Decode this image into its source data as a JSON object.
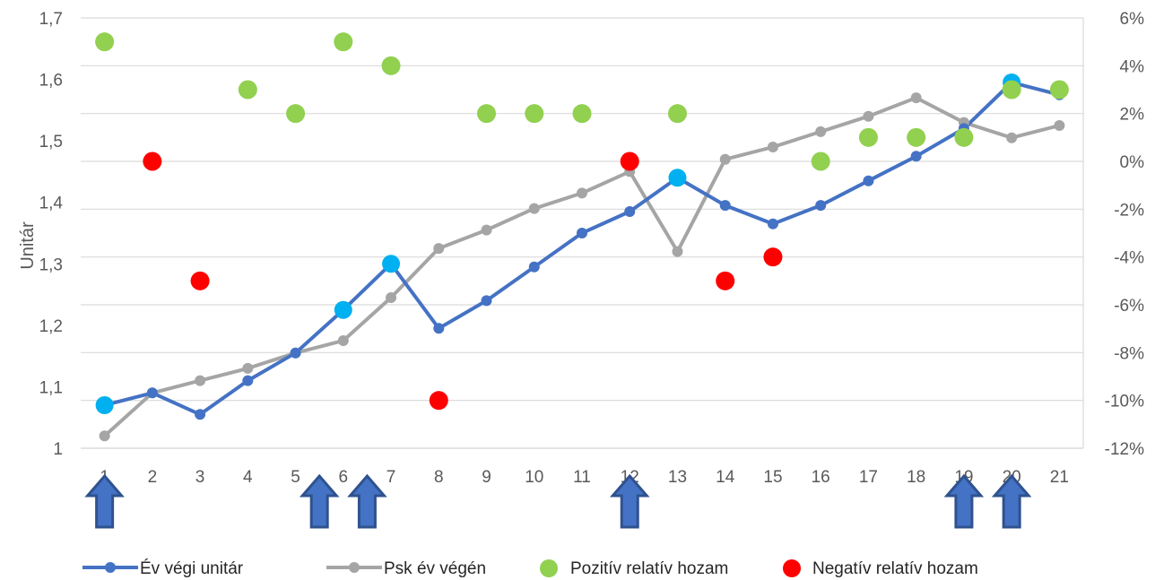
{
  "chart_data": {
    "type": "line",
    "title": "",
    "xlabel": "",
    "ylabel": "Unitár",
    "y2label": "",
    "categories": [
      "1",
      "2",
      "3",
      "4",
      "5",
      "6",
      "7",
      "8",
      "9",
      "10",
      "11",
      "12",
      "13",
      "14",
      "15",
      "16",
      "17",
      "18",
      "19",
      "20",
      "21"
    ],
    "ylim": [
      1,
      1.7
    ],
    "yticks": [
      "1",
      "1,1",
      "1,2",
      "1,3",
      "1,4",
      "1,5",
      "1,6",
      "1,7"
    ],
    "y2lim": [
      -12,
      6
    ],
    "y2ticks": [
      "-12%",
      "-10%",
      "-8%",
      "-6%",
      "-4%",
      "-2%",
      "0%",
      "2%",
      "4%",
      "6%"
    ],
    "grid": true,
    "legend_position": "bottom",
    "series": [
      {
        "name": "Év végi unitár",
        "color": "#4472c4",
        "highlight_color": "#00b0f0",
        "axis": "left",
        "values": [
          1.07,
          1.09,
          1.055,
          1.11,
          1.155,
          1.225,
          1.3,
          1.195,
          1.24,
          1.295,
          1.35,
          1.385,
          1.44,
          1.395,
          1.365,
          1.395,
          1.435,
          1.475,
          1.52,
          1.595,
          1.575
        ],
        "highlighted_points": [
          1,
          6,
          7,
          13,
          20
        ]
      },
      {
        "name": "Psk év végén",
        "color": "#a5a5a5",
        "axis": "left",
        "values": [
          1.02,
          1.09,
          1.11,
          1.13,
          1.155,
          1.175,
          1.245,
          1.325,
          1.355,
          1.39,
          1.415,
          1.45,
          1.32,
          1.47,
          1.49,
          1.515,
          1.54,
          1.57,
          1.53,
          1.505,
          1.525
        ]
      },
      {
        "name": "Pozitív relatív hozam",
        "type": "scatter",
        "color": "#92d050",
        "axis": "right",
        "points": [
          [
            1,
            5
          ],
          [
            4,
            3
          ],
          [
            5,
            2
          ],
          [
            6,
            5
          ],
          [
            7,
            4
          ],
          [
            9,
            2
          ],
          [
            10,
            2
          ],
          [
            11,
            2
          ],
          [
            13,
            2
          ],
          [
            16,
            0
          ],
          [
            17,
            1
          ],
          [
            18,
            1
          ],
          [
            19,
            1
          ],
          [
            20,
            3
          ],
          [
            21,
            3
          ]
        ]
      },
      {
        "name": "Negatív relatív hozam",
        "type": "scatter",
        "color": "#ff0000",
        "axis": "right",
        "points": [
          [
            2,
            0
          ],
          [
            3,
            -5
          ],
          [
            8,
            -10
          ],
          [
            12,
            0
          ],
          [
            14,
            -5
          ],
          [
            15,
            -4
          ]
        ]
      }
    ],
    "arrows": [
      1,
      5.5,
      6.5,
      12,
      19,
      20
    ],
    "arrow_color": "#4472c4"
  }
}
